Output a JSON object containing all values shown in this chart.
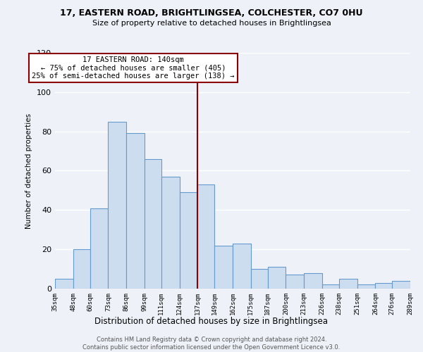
{
  "title1": "17, EASTERN ROAD, BRIGHTLINGSEA, COLCHESTER, CO7 0HU",
  "title2": "Size of property relative to detached houses in Brightlingsea",
  "xlabel": "Distribution of detached houses by size in Brightlingsea",
  "ylabel": "Number of detached properties",
  "bar_color": "#ccddf0",
  "bar_edge_color": "#6699cc",
  "bins": [
    35,
    48,
    60,
    73,
    86,
    99,
    111,
    124,
    137,
    149,
    162,
    175,
    187,
    200,
    213,
    226,
    238,
    251,
    264,
    276,
    289
  ],
  "counts": [
    5,
    20,
    41,
    85,
    79,
    66,
    57,
    49,
    53,
    22,
    23,
    10,
    11,
    7,
    8,
    2,
    5,
    2,
    3,
    4
  ],
  "tick_labels": [
    "35sqm",
    "48sqm",
    "60sqm",
    "73sqm",
    "86sqm",
    "99sqm",
    "111sqm",
    "124sqm",
    "137sqm",
    "149sqm",
    "162sqm",
    "175sqm",
    "187sqm",
    "200sqm",
    "213sqm",
    "226sqm",
    "238sqm",
    "251sqm",
    "264sqm",
    "276sqm",
    "289sqm"
  ],
  "vline_x": 137,
  "vline_color": "#8b0000",
  "ylim": [
    0,
    120
  ],
  "yticks": [
    0,
    20,
    40,
    60,
    80,
    100,
    120
  ],
  "annotation_title": "17 EASTERN ROAD: 140sqm",
  "annotation_line1": "← 75% of detached houses are smaller (405)",
  "annotation_line2": "25% of semi-detached houses are larger (138) →",
  "box_edge_color": "#8b0000",
  "footer1": "Contains HM Land Registry data © Crown copyright and database right 2024.",
  "footer2": "Contains public sector information licensed under the Open Government Licence v3.0.",
  "background_color": "#eef2f8",
  "grid_color": "#ffffff"
}
